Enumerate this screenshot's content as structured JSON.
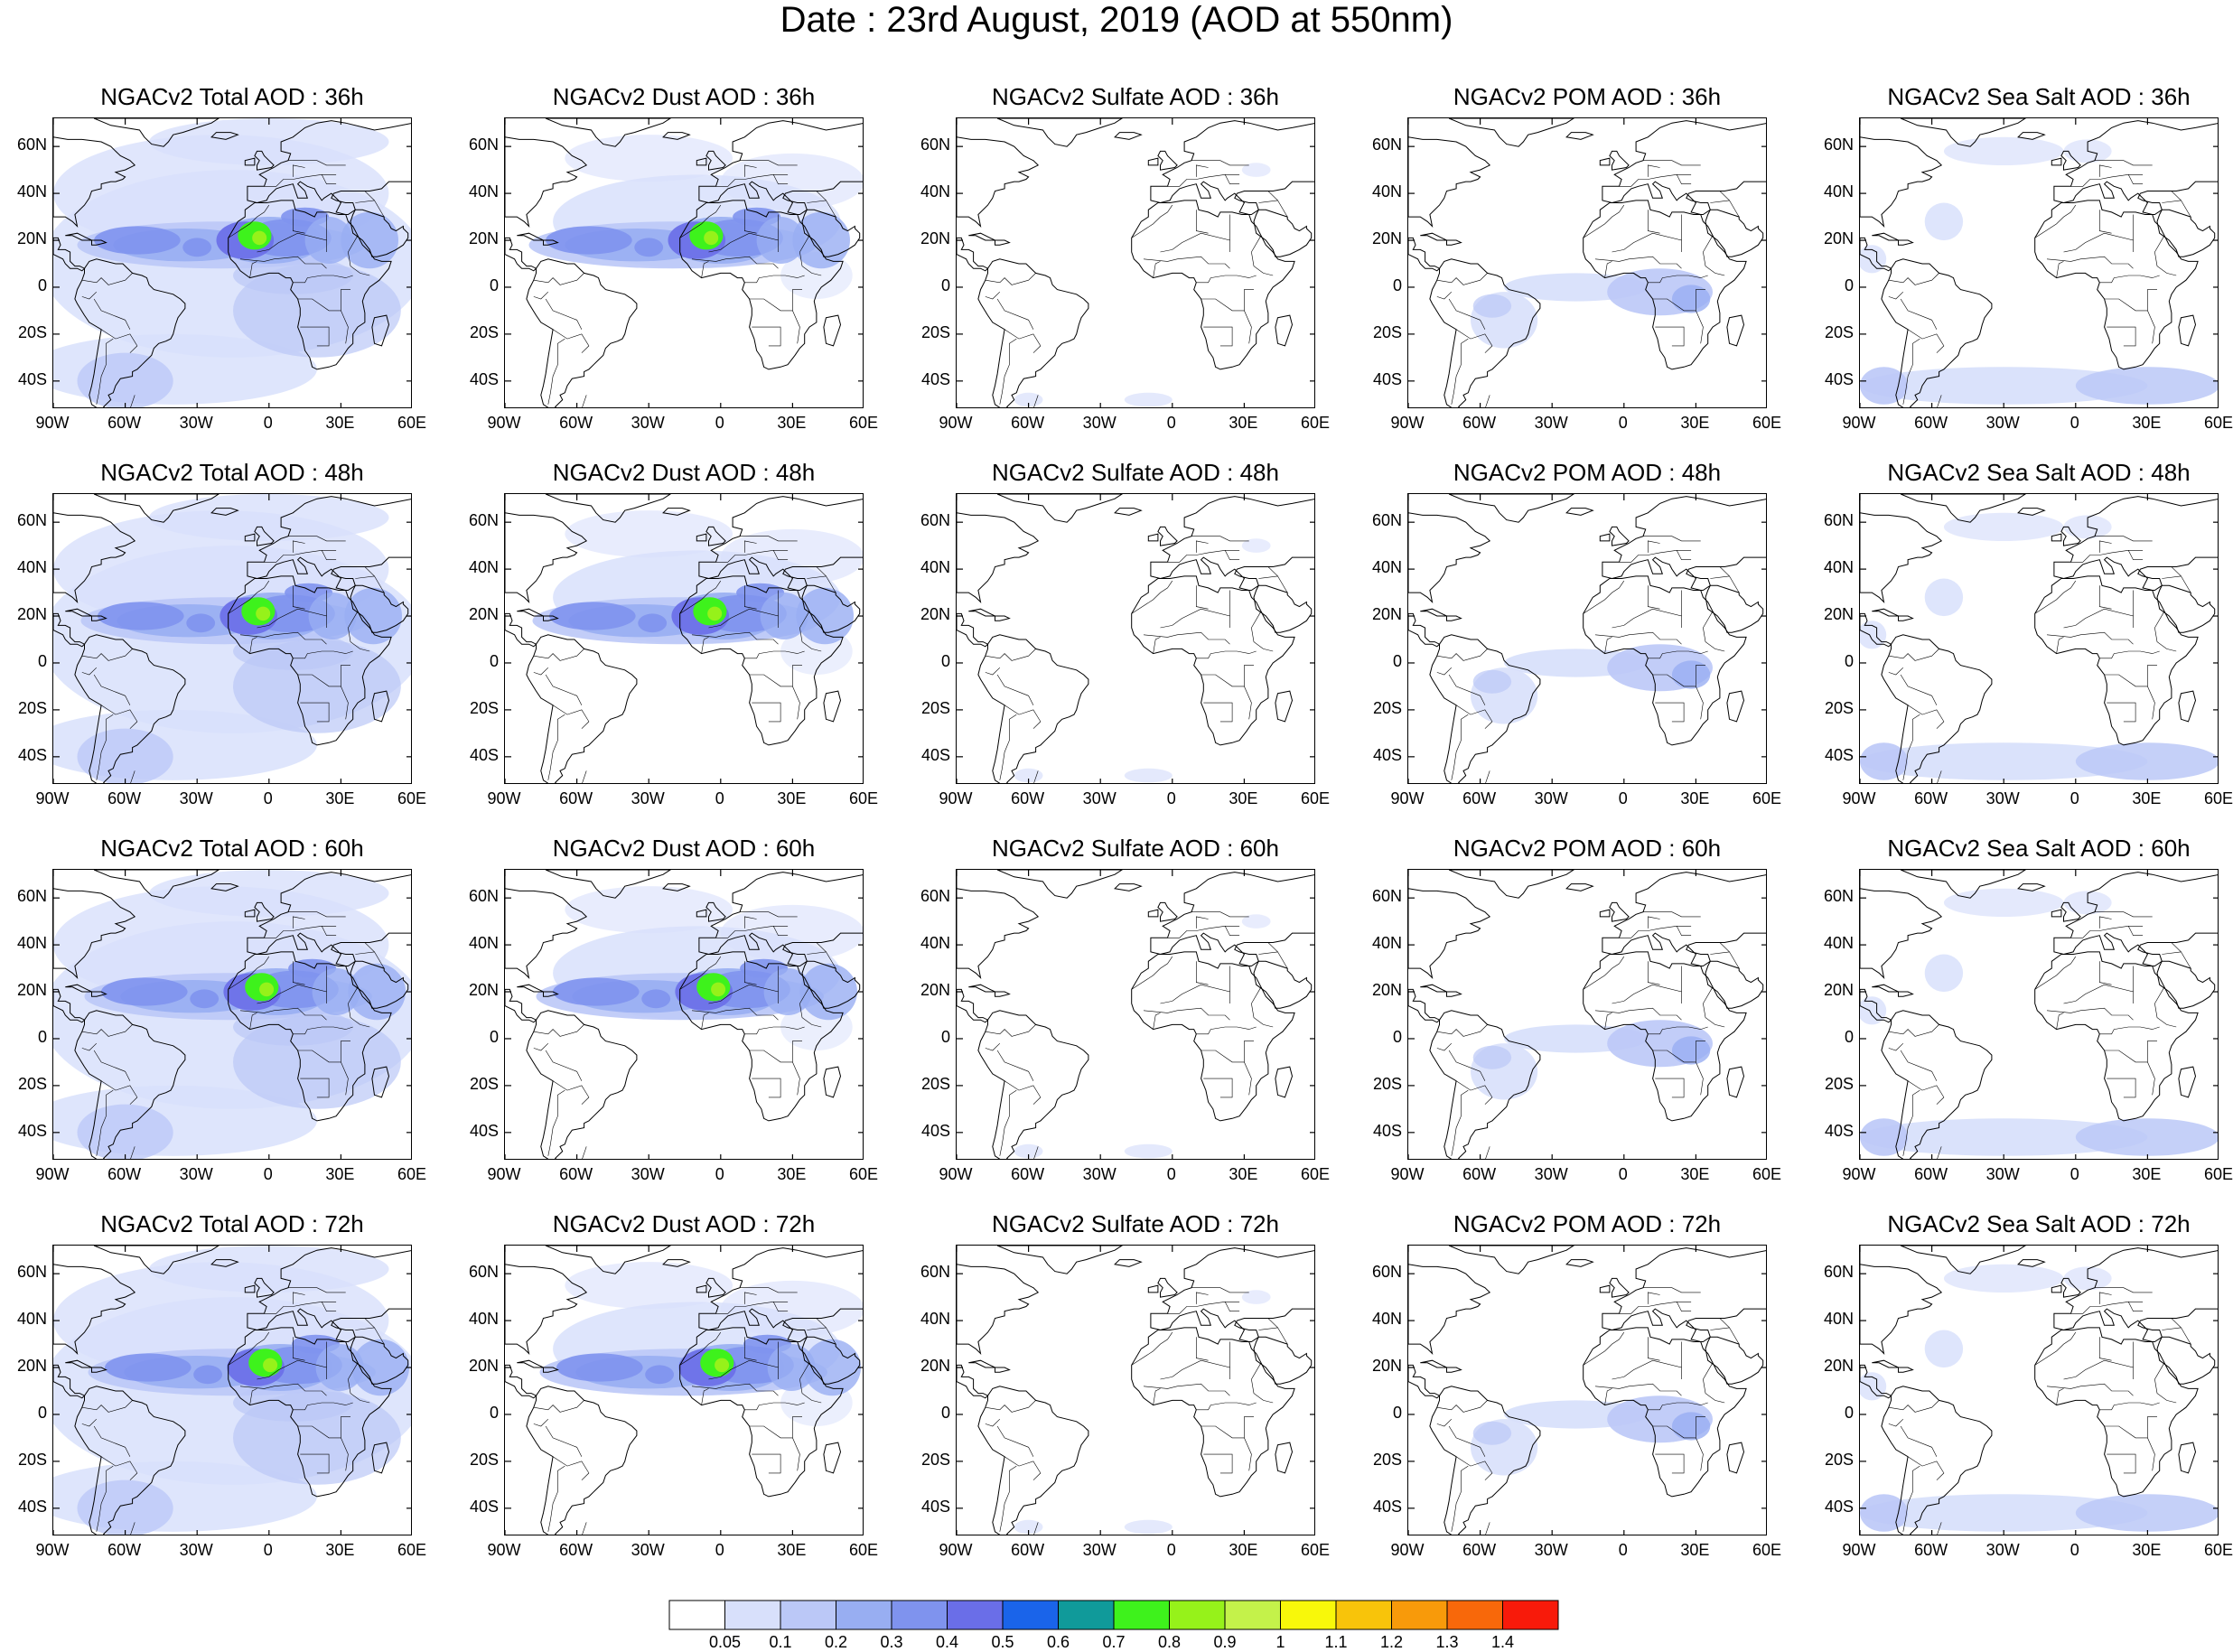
{
  "title": "Date : 23rd August, 2019 (AOD at 550nm)",
  "lat_labels": [
    "60N",
    "40N",
    "20N",
    "0",
    "20S",
    "40S"
  ],
  "lon_labels": [
    "90W",
    "60W",
    "30W",
    "0",
    "30E",
    "60E"
  ],
  "panels": [
    [
      "NGACv2 Total AOD : 36h",
      "NGACv2 Dust AOD : 36h",
      "NGACv2 Sulfate AOD : 36h",
      "NGACv2 POM AOD : 36h",
      "NGACv2 Sea Salt AOD : 36h"
    ],
    [
      "NGACv2 Total AOD : 48h",
      "NGACv2 Dust AOD : 48h",
      "NGACv2 Sulfate AOD : 48h",
      "NGACv2 POM AOD : 48h",
      "NGACv2 Sea Salt AOD : 48h"
    ],
    [
      "NGACv2 Total AOD : 60h",
      "NGACv2 Dust AOD : 60h",
      "NGACv2 Sulfate AOD : 60h",
      "NGACv2 POM AOD : 60h",
      "NGACv2 Sea Salt AOD : 60h"
    ],
    [
      "NGACv2 Total AOD : 72h",
      "NGACv2 Dust AOD : 72h",
      "NGACv2 Sulfate AOD : 72h",
      "NGACv2 POM AOD : 72h",
      "NGACv2 Sea Salt  AOD : 72h"
    ]
  ],
  "panel_types": [
    "total",
    "dust",
    "sulfate",
    "pom",
    "seasalt"
  ],
  "colorbar": {
    "labels": [
      "0.05",
      "0.1",
      "0.2",
      "0.3",
      "0.4",
      "0.5",
      "0.6",
      "0.7",
      "0.8",
      "0.9",
      "1",
      "1.1",
      "1.2",
      "1.3",
      "1.4"
    ],
    "colors": [
      "#ffffff",
      "#d8e0fb",
      "#bbc8f7",
      "#98aef2",
      "#7f93ee",
      "#6a6ee8",
      "#1a64ea",
      "#109a9a",
      "#3ef21c",
      "#96f21a",
      "#c4f24a",
      "#f8f80a",
      "#f8c40a",
      "#f89a0a",
      "#f8680a",
      "#f81a0a"
    ]
  }
}
